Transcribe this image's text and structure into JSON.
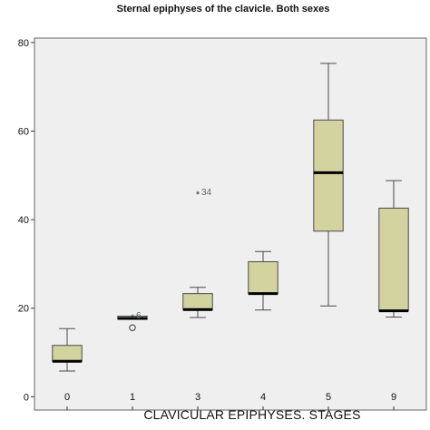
{
  "chart_data": {
    "type": "boxplot",
    "title": "Sternal epiphyses of the clavicle. Both sexes",
    "xlabel": "CLAVICULAR EPIPHYSES. STAGES",
    "ylabel": "",
    "ylim": [
      -3,
      81
    ],
    "yticks": [
      0,
      20,
      40,
      60,
      80
    ],
    "ytick_labels": [
      "0",
      "20",
      "40",
      "60",
      "80"
    ],
    "categories": [
      "0",
      "1",
      "3",
      "4",
      "5",
      "9"
    ],
    "boxes": [
      {
        "category": "0",
        "whisker_low": 5.8,
        "q1": 8.0,
        "median": 8.0,
        "q3": 11.6,
        "whisker_high": 15.4
      },
      {
        "category": "1",
        "whisker_low": 17.5,
        "q1": 17.5,
        "median": 17.7,
        "q3": 18.2,
        "whisker_high": 18.2
      },
      {
        "category": "3",
        "whisker_low": 17.9,
        "q1": 19.7,
        "median": 19.7,
        "q3": 23.3,
        "whisker_high": 24.7
      },
      {
        "category": "4",
        "whisker_low": 19.6,
        "q1": 23.3,
        "median": 23.3,
        "q3": 30.5,
        "whisker_high": 32.8
      },
      {
        "category": "5",
        "whisker_low": 20.5,
        "q1": 37.4,
        "median": 50.6,
        "q3": 62.5,
        "whisker_high": 75.3
      },
      {
        "category": "9",
        "whisker_low": 18.0,
        "q1": 19.4,
        "median": 19.4,
        "q3": 42.6,
        "whisker_high": 48.8
      }
    ],
    "outliers": [
      {
        "category": "1",
        "value": 15.6,
        "marker": "circle",
        "label": ""
      },
      {
        "category": "1",
        "value": 17.9,
        "marker": "star",
        "label": "6"
      },
      {
        "category": "3",
        "value": 45.8,
        "marker": "star",
        "label": "34"
      }
    ],
    "grid": false,
    "legend": "none",
    "colors": {
      "box_fill": "#d3d3a0",
      "box_stroke": "#4a4a4a",
      "plot_background": "#efefef",
      "median": "#000000",
      "annotation": "#4a6b6b"
    }
  }
}
